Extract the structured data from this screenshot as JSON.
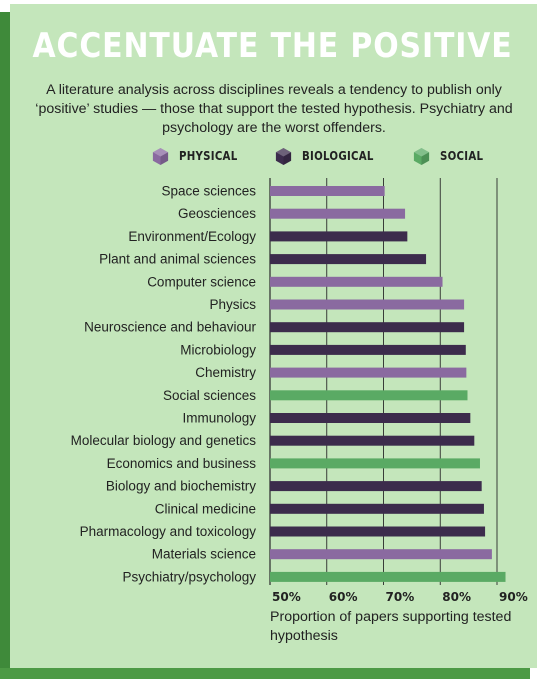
{
  "title": "ACCENTUATE THE POSITIVE",
  "subtitle": "A literature analysis across disciplines reveals a tendency to publish only ‘positive’ studies — those that support the tested hypothesis. Psychiatry and psychology are the worst offenders.",
  "colors": {
    "physical": "#8a6aa0",
    "biological": "#3c2c4c",
    "social": "#5aaa64",
    "background": "#c4e6bb",
    "title": "#ffffff"
  },
  "legend": [
    {
      "key": "physical",
      "label": "PHYSICAL"
    },
    {
      "key": "biological",
      "label": "BIOLOGICAL"
    },
    {
      "key": "social",
      "label": "SOCIAL"
    }
  ],
  "chart_data": {
    "type": "bar",
    "orientation": "horizontal",
    "categories": [
      "Space sciences",
      "Geosciences",
      "Environment/Ecology",
      "Plant and animal sciences",
      "Computer science",
      "Physics",
      "Neuroscience and behaviour",
      "Microbiology",
      "Chemistry",
      "Social sciences",
      "Immunology",
      "Molecular biology and genetics",
      "Economics and business",
      "Biology and biochemistry",
      "Clinical medicine",
      "Pharmacology and toxicology",
      "Materials science",
      "Psychiatry/psychology"
    ],
    "values": [
      70.2,
      73.8,
      74.2,
      77.5,
      80.4,
      84.2,
      84.2,
      84.5,
      84.6,
      84.8,
      85.3,
      86.0,
      87.0,
      87.3,
      87.7,
      87.9,
      89.1,
      91.5
    ],
    "groups": [
      "physical",
      "physical",
      "biological",
      "biological",
      "physical",
      "physical",
      "biological",
      "biological",
      "physical",
      "social",
      "biological",
      "biological",
      "social",
      "biological",
      "biological",
      "biological",
      "physical",
      "social"
    ],
    "xlim": [
      50,
      90
    ],
    "xticks": [
      "50%",
      "60%",
      "70%",
      "80%",
      "90%"
    ],
    "xtick_values": [
      50,
      60,
      70,
      80,
      90
    ],
    "xlabel": "Proportion of papers supporting tested hypothesis",
    "grid": true
  }
}
